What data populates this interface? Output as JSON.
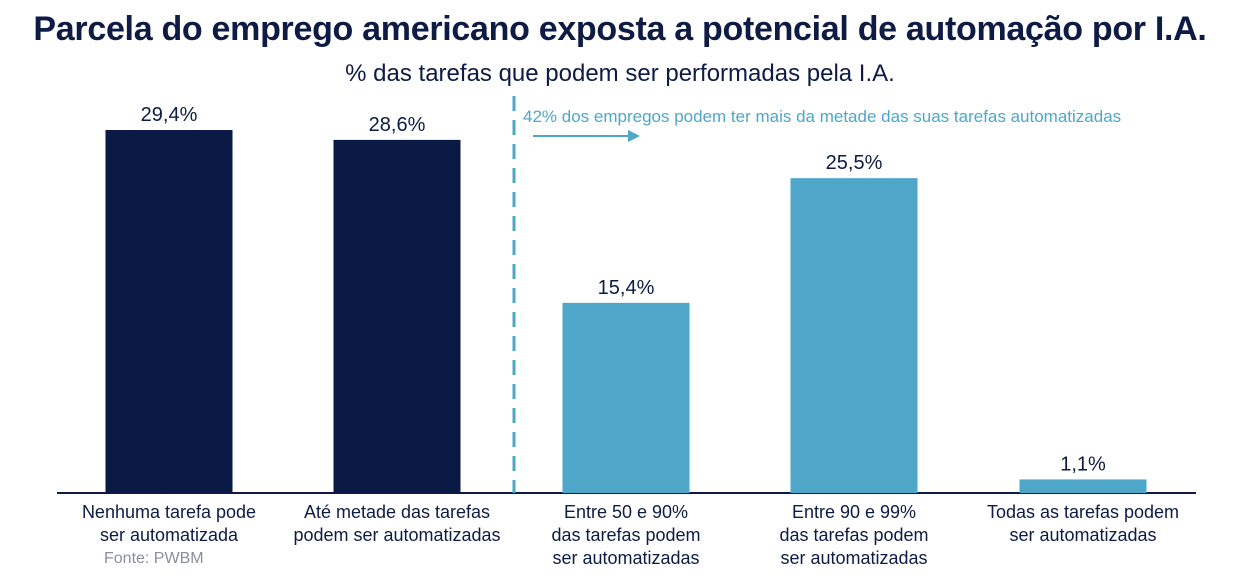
{
  "title": "Parcela do emprego americano exposta a potencial de automação por I.A.",
  "subtitle": "% das tarefas que podem ser performadas pela I.A.",
  "source": "Fonte: PWBM",
  "annotation": "42% dos empregos podem ter mais da metade das suas tarefas automatizadas",
  "colors": {
    "dark": "#0b1a45",
    "light": "#4ea7c9",
    "text": "#0d1b45"
  },
  "chart_data": {
    "type": "bar",
    "categories": [
      [
        "Nenhuma tarefa pode",
        "ser automatizada"
      ],
      [
        "Até metade das tarefas",
        "podem ser automatizadas"
      ],
      [
        "Entre 50 e 90%",
        "das tarefas podem",
        "ser automatizadas"
      ],
      [
        "Entre 90 e 99%",
        "das tarefas podem",
        "ser automatizadas"
      ],
      [
        "Todas as tarefas podem",
        "ser automatizadas"
      ]
    ],
    "values": [
      29.4,
      28.6,
      15.4,
      25.5,
      1.1
    ],
    "labels": [
      "29,4%",
      "28,6%",
      "15,4%",
      "25,5%",
      "1,1%"
    ],
    "bar_colors": [
      "dark",
      "dark",
      "light",
      "light",
      "light"
    ],
    "ylim": [
      0,
      30
    ],
    "grid": false
  }
}
